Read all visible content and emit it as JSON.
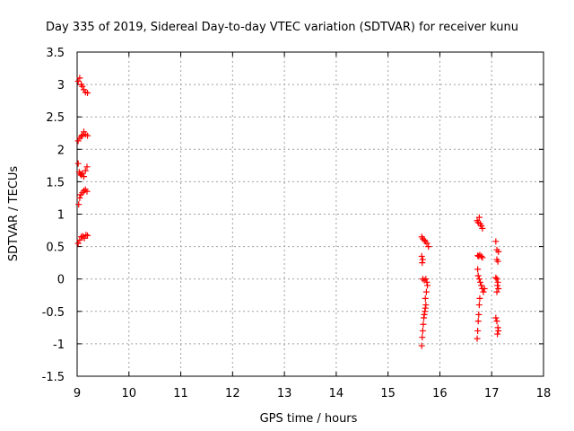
{
  "chart_data": {
    "type": "scatter",
    "title": "Day 335 of 2019, Sidereal Day-to-day VTEC variation (SDTVAR) for receiver kunu",
    "xlabel": "GPS time / hours",
    "ylabel": "SDTVAR / TECUs",
    "xlim": [
      9,
      18
    ],
    "ylim": [
      -1.5,
      3.5
    ],
    "xticks": [
      9,
      10,
      11,
      12,
      13,
      14,
      15,
      16,
      17,
      18
    ],
    "yticks": [
      -1.5,
      -1,
      -0.5,
      0,
      0.5,
      1,
      1.5,
      2,
      2.5,
      3,
      3.5
    ],
    "xtick_labels": [
      "9",
      "10",
      "11",
      "12",
      "13",
      "14",
      "15",
      "16",
      "17",
      "18"
    ],
    "ytick_labels": [
      "-1.5",
      "-1",
      "-0.5",
      "0",
      "0.5",
      "1",
      "1.5",
      "2",
      "2.5",
      "3",
      "3.5"
    ],
    "grid": true,
    "marker": "+",
    "color": "#ff0000",
    "series": [
      {
        "name": "SDTVAR",
        "points": [
          [
            9.02,
            3.05
          ],
          [
            9.05,
            3.1
          ],
          [
            9.08,
            3.0
          ],
          [
            9.1,
            2.97
          ],
          [
            9.13,
            2.92
          ],
          [
            9.16,
            2.88
          ],
          [
            9.2,
            2.87
          ],
          [
            9.02,
            2.13
          ],
          [
            9.05,
            2.17
          ],
          [
            9.08,
            2.2
          ],
          [
            9.1,
            2.22
          ],
          [
            9.13,
            2.27
          ],
          [
            9.16,
            2.23
          ],
          [
            9.2,
            2.21
          ],
          [
            9.02,
            1.78
          ],
          [
            9.04,
            1.65
          ],
          [
            9.06,
            1.62
          ],
          [
            9.08,
            1.6
          ],
          [
            9.1,
            1.63
          ],
          [
            9.13,
            1.58
          ],
          [
            9.16,
            1.67
          ],
          [
            9.19,
            1.73
          ],
          [
            9.03,
            1.15
          ],
          [
            9.05,
            1.25
          ],
          [
            9.07,
            1.3
          ],
          [
            9.1,
            1.33
          ],
          [
            9.13,
            1.36
          ],
          [
            9.16,
            1.38
          ],
          [
            9.19,
            1.35
          ],
          [
            9.02,
            0.55
          ],
          [
            9.05,
            0.6
          ],
          [
            9.08,
            0.65
          ],
          [
            9.11,
            0.66
          ],
          [
            9.14,
            0.63
          ],
          [
            9.17,
            0.68
          ],
          [
            9.2,
            0.67
          ],
          [
            15.65,
            0.65
          ],
          [
            15.67,
            0.62
          ],
          [
            15.7,
            0.6
          ],
          [
            15.72,
            0.58
          ],
          [
            15.75,
            0.55
          ],
          [
            15.78,
            0.5
          ],
          [
            15.65,
            0.35
          ],
          [
            15.67,
            0.3
          ],
          [
            15.66,
            0.25
          ],
          [
            15.67,
            0.0
          ],
          [
            15.7,
            -0.02
          ],
          [
            15.73,
            0.0
          ],
          [
            15.75,
            -0.05
          ],
          [
            15.76,
            -0.1
          ],
          [
            15.74,
            -0.2
          ],
          [
            15.72,
            -0.3
          ],
          [
            15.73,
            -0.4
          ],
          [
            15.72,
            -0.45
          ],
          [
            15.71,
            -0.5
          ],
          [
            15.7,
            -0.55
          ],
          [
            15.69,
            -0.6
          ],
          [
            15.68,
            -0.7
          ],
          [
            15.67,
            -0.8
          ],
          [
            15.66,
            -0.9
          ],
          [
            15.65,
            -1.03
          ],
          [
            16.72,
            0.9
          ],
          [
            16.74,
            0.87
          ],
          [
            16.76,
            0.95
          ],
          [
            16.78,
            0.85
          ],
          [
            16.8,
            0.82
          ],
          [
            16.82,
            0.78
          ],
          [
            16.73,
            0.36
          ],
          [
            16.75,
            0.35
          ],
          [
            16.77,
            0.37
          ],
          [
            16.8,
            0.35
          ],
          [
            16.82,
            0.33
          ],
          [
            16.73,
            0.15
          ],
          [
            16.74,
            0.05
          ],
          [
            16.76,
            0.0
          ],
          [
            16.78,
            -0.05
          ],
          [
            16.8,
            -0.1
          ],
          [
            16.82,
            -0.15
          ],
          [
            16.84,
            -0.2
          ],
          [
            16.86,
            -0.15
          ],
          [
            16.77,
            -0.3
          ],
          [
            16.76,
            -0.4
          ],
          [
            16.75,
            -0.55
          ],
          [
            16.74,
            -0.65
          ],
          [
            16.73,
            -0.8
          ],
          [
            16.72,
            -0.92
          ],
          [
            17.08,
            0.58
          ],
          [
            17.1,
            0.45
          ],
          [
            17.13,
            0.42
          ],
          [
            17.1,
            0.3
          ],
          [
            17.12,
            0.27
          ],
          [
            17.08,
            0.02
          ],
          [
            17.1,
            0.0
          ],
          [
            17.12,
            -0.05
          ],
          [
            17.11,
            -0.1
          ],
          [
            17.13,
            -0.15
          ],
          [
            17.1,
            -0.2
          ],
          [
            17.08,
            -0.6
          ],
          [
            17.1,
            -0.65
          ],
          [
            17.12,
            -0.75
          ],
          [
            17.13,
            -0.8
          ],
          [
            17.11,
            -0.85
          ]
        ]
      }
    ]
  }
}
